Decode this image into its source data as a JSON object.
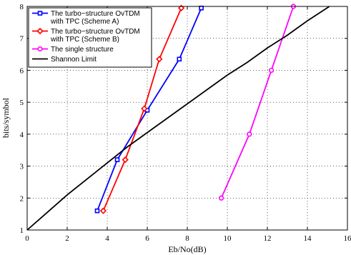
{
  "chart_data": {
    "type": "line",
    "title": "",
    "xlabel": "Eb/No(dB)",
    "ylabel": "bits/symbol",
    "xlim": [
      0,
      16
    ],
    "ylim": [
      1,
      8
    ],
    "xticks": [
      0,
      2,
      4,
      6,
      8,
      10,
      12,
      14,
      16
    ],
    "yticks": [
      1,
      2,
      3,
      4,
      5,
      6,
      7,
      8
    ],
    "grid": true,
    "legend_position": "top-left",
    "series": [
      {
        "name": "The turbo−structure OvTDM with TPC  (Scheme A)",
        "legend_lines": [
          "The turbo−structure OvTDM",
          "with TPC  (Scheme A)"
        ],
        "color": "#0000ff",
        "marker": "square",
        "x": [
          3.5,
          4.5,
          6.0,
          7.6,
          8.7
        ],
        "y": [
          1.6,
          3.2,
          4.75,
          6.35,
          7.95
        ]
      },
      {
        "name": "The turbo−structure OvTDM with TPC  (Scheme B)",
        "legend_lines": [
          "The turbo−structure OvTDM",
          "with TPC  (Scheme B)"
        ],
        "color": "#ff0000",
        "marker": "diamond",
        "x": [
          3.8,
          4.9,
          5.85,
          6.6,
          7.7
        ],
        "y": [
          1.6,
          3.2,
          4.8,
          6.35,
          7.95
        ]
      },
      {
        "name": "The single structure",
        "legend_lines": [
          "The single structure"
        ],
        "color": "#ff00ff",
        "marker": "circle",
        "x": [
          9.7,
          11.1,
          12.2,
          13.3
        ],
        "y": [
          2.0,
          4.0,
          6.0,
          8.0
        ]
      },
      {
        "name": "Shannon Limit",
        "legend_lines": [
          "Shannon Limit"
        ],
        "color": "#000000",
        "marker": "none",
        "x": [
          0.0,
          1.0,
          2.0,
          3.0,
          4.0,
          5.0,
          6.0,
          7.0,
          8.0,
          9.0,
          10.0,
          11.0,
          12.0,
          13.0,
          14.0,
          15.1
        ],
        "y": [
          1.0,
          1.55,
          2.1,
          2.6,
          3.1,
          3.6,
          4.05,
          4.5,
          4.95,
          5.4,
          5.85,
          6.25,
          6.7,
          7.1,
          7.55,
          8.0
        ]
      }
    ]
  }
}
